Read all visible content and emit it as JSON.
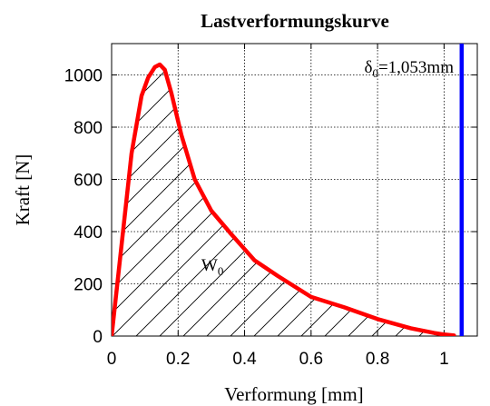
{
  "chart_data": {
    "type": "line",
    "title": "Lastverformungskurve",
    "xlabel": "Verformung [mm]",
    "ylabel": "Kraft [N]",
    "xlim": [
      0,
      1.1
    ],
    "ylim": [
      0,
      1120
    ],
    "x_ticks": [
      0,
      0.2,
      0.4,
      0.6,
      0.8,
      1
    ],
    "x_tick_labels": [
      "0",
      "0.2",
      "0.4",
      "0.6",
      "0.8",
      "1"
    ],
    "y_ticks": [
      0,
      200,
      400,
      600,
      800,
      1000
    ],
    "y_tick_labels": [
      "0",
      "200",
      "400",
      "600",
      "800",
      "1000"
    ],
    "grid": true,
    "series": [
      {
        "color": "#ff0000",
        "x": [
          0,
          0.03,
          0.06,
          0.09,
          0.11,
          0.13,
          0.145,
          0.16,
          0.18,
          0.21,
          0.25,
          0.3,
          0.36,
          0.43,
          0.5,
          0.6,
          0.7,
          0.8,
          0.9,
          0.97,
          1.0,
          1.03
        ],
        "y": [
          0,
          350,
          700,
          920,
          990,
          1030,
          1040,
          1020,
          930,
          770,
          600,
          480,
          390,
          290,
          230,
          150,
          110,
          65,
          30,
          12,
          6,
          2
        ]
      }
    ],
    "vline": {
      "x": 1.053,
      "color": "#0000ff",
      "label_symbol": "δ",
      "label_subscript": "0",
      "label_value": "=1,053mm"
    },
    "area_label": {
      "symbol": "W",
      "subscript": "0",
      "x": 0.27,
      "y": 250
    }
  }
}
